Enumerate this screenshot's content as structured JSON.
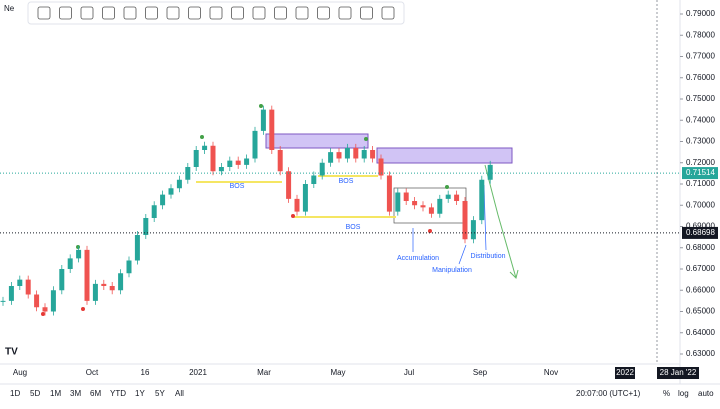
{
  "tab": {
    "title": "Ne"
  },
  "chart_data": {
    "type": "candlestick",
    "values": [
      0.655,
      0.662,
      0.665,
      0.658,
      0.652,
      0.65,
      0.66,
      0.67,
      0.675,
      0.679,
      0.655,
      0.663,
      0.662,
      0.66,
      0.668,
      0.674,
      0.686,
      0.694,
      0.7,
      0.705,
      0.708,
      0.712,
      0.718,
      0.726,
      0.728,
      0.716,
      0.718,
      0.721,
      0.719,
      0.722,
      0.735,
      0.745,
      0.726,
      0.716,
      0.703,
      0.697,
      0.71,
      0.714,
      0.72,
      0.725,
      0.722,
      0.727,
      0.722,
      0.726,
      0.722,
      0.714,
      0.697,
      0.706,
      0.702,
      0.7,
      0.699,
      0.696,
      0.703,
      0.705,
      0.702,
      0.684,
      0.693,
      0.712,
      0.719
    ],
    "up_color": "#26a69a",
    "down_color": "#ef5350",
    "ylim": [
      0.625,
      0.795
    ],
    "yticks": [
      {
        "value": 0.79,
        "label": "0.79000"
      },
      {
        "value": 0.78,
        "label": "0.78000"
      },
      {
        "value": 0.77,
        "label": "0.77000"
      },
      {
        "value": 0.76,
        "label": "0.76000"
      },
      {
        "value": 0.75,
        "label": "0.75000"
      },
      {
        "value": 0.74,
        "label": "0.74000"
      },
      {
        "value": 0.73,
        "label": "0.73000"
      },
      {
        "value": 0.72,
        "label": "0.72000"
      },
      {
        "value": 0.71,
        "label": "0.71000"
      },
      {
        "value": 0.7,
        "label": "0.70000"
      },
      {
        "value": 0.69,
        "label": "0.69000"
      },
      {
        "value": 0.68,
        "label": "0.68000"
      },
      {
        "value": 0.67,
        "label": "0.67000"
      },
      {
        "value": 0.66,
        "label": "0.66000"
      },
      {
        "value": 0.65,
        "label": "0.65000"
      },
      {
        "value": 0.64,
        "label": "0.64000"
      },
      {
        "value": 0.63,
        "label": "0.63000"
      }
    ],
    "price_markers": [
      {
        "value": 0.71514,
        "label": "0.71514",
        "color": "#26a69a"
      },
      {
        "value": 0.68698,
        "label": "0.68698",
        "color": "#131722"
      }
    ],
    "x_labels": [
      "Aug",
      "Oct",
      "16",
      "2021",
      "Mar",
      "May",
      "Jul",
      "Sep",
      "Nov",
      "2022",
      "28 Jan '22"
    ],
    "annotations": [
      "BOS",
      "BOS",
      "BOS",
      "Accumulation",
      "Manipulation",
      "Distribution"
    ]
  },
  "bottom_bar": {
    "ranges": [
      "1D",
      "5D",
      "1M",
      "3M",
      "6M",
      "YTD",
      "1Y",
      "5Y",
      "All"
    ],
    "clock": "20:07:00 (UTC+1)",
    "options": [
      "%",
      "log",
      "auto"
    ]
  }
}
